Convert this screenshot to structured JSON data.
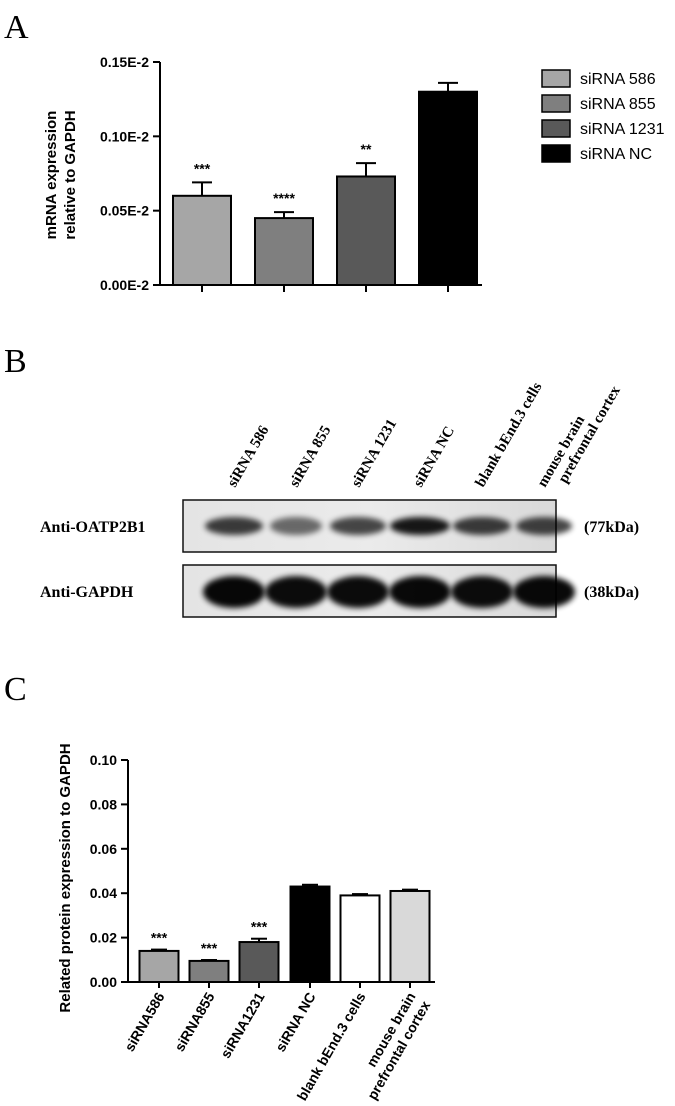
{
  "panels": {
    "a": {
      "letter": "A"
    },
    "b": {
      "letter": "B"
    },
    "c": {
      "letter": "C"
    }
  },
  "colors": {
    "siRNA_586": "#a6a6a6",
    "siRNA_855": "#7f7f7f",
    "siRNA_1231": "#595959",
    "siRNA_NC": "#000000",
    "blank": "#ffffff",
    "mouse_brain": "#d9d9d9"
  },
  "chart_data": [
    {
      "id": "panel-a",
      "type": "bar",
      "categories": [
        "siRNA 586",
        "siRNA 855",
        "siRNA 1231",
        "siRNA NC"
      ],
      "values": [
        0.0006,
        0.00045,
        0.00073,
        0.0013
      ],
      "errors": [
        9e-05,
        4e-05,
        9e-05,
        6e-05
      ],
      "significance": [
        "***",
        "****",
        "**",
        ""
      ],
      "ylabel_lines": [
        "mRNA expression",
        "relative to GAPDH"
      ],
      "ylim": [
        0,
        0.0015
      ],
      "yticks": [
        0,
        0.0005,
        0.001,
        0.0015
      ],
      "ytick_labels": [
        "0.00E-2",
        "0.05E-2",
        "0.10E-2",
        "0.15E-2"
      ],
      "legend": [
        "siRNA 586",
        "siRNA 855",
        "siRNA 1231",
        "siRNA NC"
      ],
      "legend_position": "right",
      "grid": false
    },
    {
      "id": "panel-c",
      "type": "bar",
      "categories": [
        "siRNA586",
        "siRNA855",
        "siRNA1231",
        "siRNA NC",
        "blank bEnd.3 cells",
        "mouse brain prefrontal cortex"
      ],
      "category_lines": [
        [
          "siRNA586"
        ],
        [
          "siRNA855"
        ],
        [
          "siRNA1231"
        ],
        [
          "siRNA NC"
        ],
        [
          "blank bEnd.3 cells"
        ],
        [
          "mouse brain",
          "prefrontal cortex"
        ]
      ],
      "values": [
        0.014,
        0.0095,
        0.018,
        0.043,
        0.039,
        0.041
      ],
      "errors": [
        0.0006,
        0.0004,
        0.0015,
        0.0008,
        0.0006,
        0.0006
      ],
      "significance": [
        "***",
        "***",
        "***",
        "",
        "",
        ""
      ],
      "ylabel": "Related protein expression to GAPDH",
      "ylim": [
        0,
        0.1
      ],
      "yticks": [
        0,
        0.02,
        0.04,
        0.06,
        0.08,
        0.1
      ],
      "ytick_labels": [
        "0.00",
        "0.02",
        "0.04",
        "0.06",
        "0.08",
        "0.10"
      ],
      "grid": false
    }
  ],
  "blot": {
    "lanes": [
      {
        "lines": [
          "siRNA 586"
        ]
      },
      {
        "lines": [
          "siRNA 855"
        ]
      },
      {
        "lines": [
          "siRNA 1231"
        ]
      },
      {
        "lines": [
          "siRNA NC"
        ]
      },
      {
        "lines": [
          "blank bEnd.3 cells"
        ]
      },
      {
        "lines": [
          "mouse brain",
          "prefrontal cortex"
        ]
      }
    ],
    "rows": [
      {
        "label": "Anti-OATP2B1",
        "size": "(77kDa)"
      },
      {
        "label": "Anti-GAPDH",
        "size": "(38kDa)"
      }
    ]
  }
}
